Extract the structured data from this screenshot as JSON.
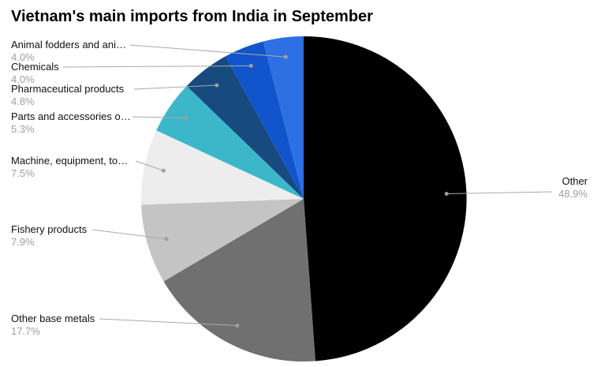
{
  "title": "Vietnam's main imports from India in September",
  "chart_data": {
    "type": "pie",
    "title": "Vietnam's main imports from India in September",
    "start_angle_deg": 0,
    "direction": "clockwise",
    "legend_position": "outside-callout-labels",
    "slices": [
      {
        "label": "Other",
        "value": 48.9,
        "pct_label": "48.9%",
        "color": "#000000"
      },
      {
        "label": "Other base metals",
        "value": 17.7,
        "pct_label": "17.7%",
        "color": "#707070"
      },
      {
        "label": "Fishery products",
        "value": 7.9,
        "pct_label": "7.9%",
        "color": "#c4c4c4"
      },
      {
        "label": "Machine, equipment, to…",
        "value": 7.5,
        "pct_label": "7.5%",
        "color": "#ededed"
      },
      {
        "label": "Parts and accessories o…",
        "value": 5.3,
        "pct_label": "5.3%",
        "color": "#3cb7c9"
      },
      {
        "label": "Pharmaceutical products",
        "value": 4.8,
        "pct_label": "4.8%",
        "color": "#174a7f"
      },
      {
        "label": "Chemicals",
        "value": 4.0,
        "pct_label": "4.0%",
        "color": "#1254cc"
      },
      {
        "label": "Animal fodders and ani…",
        "value": 4.0,
        "pct_label": "4.0%",
        "color": "#2e6fe3"
      }
    ],
    "colors": {
      "label_text": "#111111",
      "pct_text": "#9e9e9e",
      "leader_line": "#aaaaaa",
      "dot": "#9e9e9e",
      "background": "#ffffff"
    }
  }
}
